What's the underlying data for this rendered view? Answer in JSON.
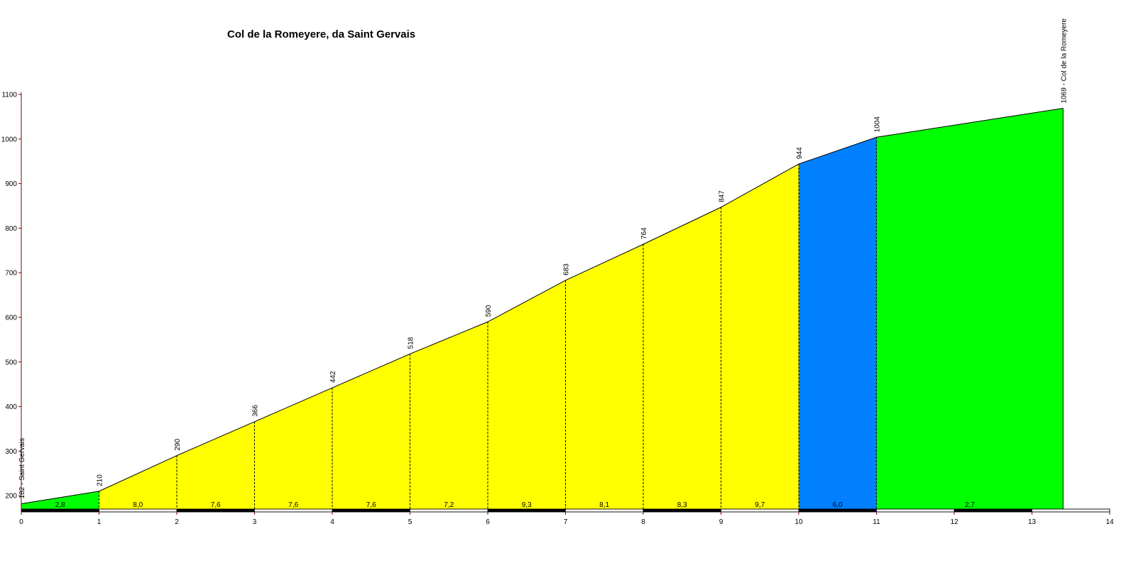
{
  "chart_data": {
    "type": "area",
    "title": "Col de la Romeyere, da Saint Gervais",
    "xlabel": "",
    "ylabel": "",
    "xlim": [
      0,
      14
    ],
    "ylim": [
      170,
      1100
    ],
    "x_ticks": [
      "0",
      "1",
      "2",
      "3",
      "4",
      "5",
      "6",
      "7",
      "8",
      "9",
      "10",
      "11",
      "12",
      "13",
      "14"
    ],
    "y_ticks": [
      "200",
      "300",
      "400",
      "500",
      "600",
      "700",
      "800",
      "900",
      "1000",
      "1100"
    ],
    "points": [
      {
        "x": 0,
        "y": 182,
        "label": "182 - Saint Gervais"
      },
      {
        "x": 1,
        "y": 210,
        "label": "210"
      },
      {
        "x": 2,
        "y": 290,
        "label": "290"
      },
      {
        "x": 3,
        "y": 366,
        "label": "366"
      },
      {
        "x": 4,
        "y": 442,
        "label": "442"
      },
      {
        "x": 5,
        "y": 518,
        "label": "518"
      },
      {
        "x": 6,
        "y": 590,
        "label": "590"
      },
      {
        "x": 7,
        "y": 683,
        "label": "683"
      },
      {
        "x": 8,
        "y": 764,
        "label": "764"
      },
      {
        "x": 9,
        "y": 847,
        "label": "847"
      },
      {
        "x": 10,
        "y": 944,
        "label": "944"
      },
      {
        "x": 11,
        "y": 1004,
        "label": "1004"
      },
      {
        "x": 13.4,
        "y": 1069,
        "label": "1069 - Col de la Romeyere"
      }
    ],
    "segments": [
      {
        "from": 0,
        "to": 1,
        "gradient": "2,8",
        "color": "#00ff00"
      },
      {
        "from": 1,
        "to": 2,
        "gradient": "8,0",
        "color": "#ffff00"
      },
      {
        "from": 2,
        "to": 3,
        "gradient": "7,6",
        "color": "#ffff00"
      },
      {
        "from": 3,
        "to": 4,
        "gradient": "7,6",
        "color": "#ffff00"
      },
      {
        "from": 4,
        "to": 5,
        "gradient": "7,6",
        "color": "#ffff00"
      },
      {
        "from": 5,
        "to": 6,
        "gradient": "7,2",
        "color": "#ffff00"
      },
      {
        "from": 6,
        "to": 7,
        "gradient": "9,3",
        "color": "#ffff00"
      },
      {
        "from": 7,
        "to": 8,
        "gradient": "8,1",
        "color": "#ffff00"
      },
      {
        "from": 8,
        "to": 9,
        "gradient": "8,3",
        "color": "#ffff00"
      },
      {
        "from": 9,
        "to": 10,
        "gradient": "9,7",
        "color": "#ffff00"
      },
      {
        "from": 10,
        "to": 11,
        "gradient": "6,0",
        "color": "#0080ff"
      },
      {
        "from": 11,
        "to": 13.4,
        "gradient": "2,7",
        "color": "#00ff00"
      }
    ],
    "colors": {
      "axis": "#800000",
      "stroke": "#000000",
      "bar_dark": "#000000",
      "bar_light": "#ffffff"
    }
  }
}
